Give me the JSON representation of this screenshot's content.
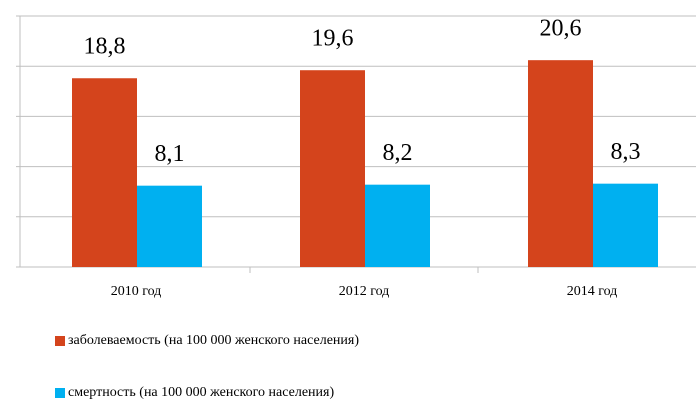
{
  "chart_data": {
    "type": "bar",
    "categories": [
      "2010 год",
      "2012 год",
      "2014 год"
    ],
    "series": [
      {
        "name": "заболеваемость (на 100 000 женского населения)",
        "color": "#d4441c",
        "values": [
          18.8,
          19.6,
          20.6
        ],
        "value_labels": [
          "18,8",
          "19,6",
          "20,6"
        ]
      },
      {
        "name": "смертность (на 100 000 женского населения)",
        "color": "#00b0f0",
        "values": [
          8.1,
          8.2,
          8.3
        ],
        "value_labels": [
          "8,1",
          "8,2",
          "8,3"
        ]
      }
    ],
    "ylim": [
      0,
      25
    ],
    "yticks": [
      0,
      5,
      10,
      15,
      20,
      25
    ],
    "grid": true,
    "legend": "bottom"
  }
}
